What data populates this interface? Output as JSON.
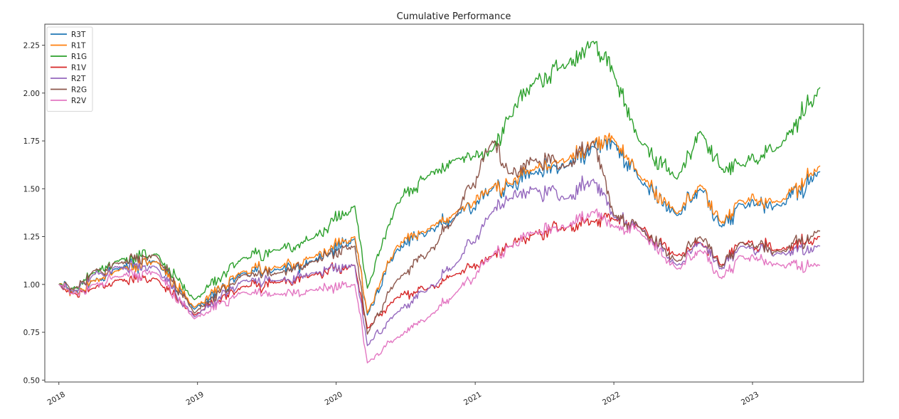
{
  "chart_data": {
    "type": "line",
    "title": "Cumulative Performance",
    "xlabel": "",
    "ylabel": "",
    "grid": false,
    "legend_position": "top-left",
    "xlim": [
      "2017-11-25",
      "2023-10-20"
    ],
    "ylim": [
      0.49,
      2.36
    ],
    "x_ticks": [
      {
        "date": "2018-01-01",
        "label": "2018"
      },
      {
        "date": "2019-01-01",
        "label": "2019"
      },
      {
        "date": "2020-01-01",
        "label": "2020"
      },
      {
        "date": "2021-01-01",
        "label": "2021"
      },
      {
        "date": "2022-01-01",
        "label": "2022"
      },
      {
        "date": "2023-01-01",
        "label": "2023"
      }
    ],
    "y_ticks": [
      {
        "value": 0.5,
        "label": "0.50"
      },
      {
        "value": 0.75,
        "label": "0.75"
      },
      {
        "value": 1.0,
        "label": "1.00"
      },
      {
        "value": 1.25,
        "label": "1.25"
      },
      {
        "value": 1.5,
        "label": "1.50"
      },
      {
        "value": 1.75,
        "label": "1.75"
      },
      {
        "value": 2.0,
        "label": "2.00"
      },
      {
        "value": 2.25,
        "label": "2.25"
      }
    ],
    "x": [
      "2018-01-01",
      "2018-02-08",
      "2018-04-01",
      "2018-06-01",
      "2018-09-15",
      "2018-12-24",
      "2019-05-01",
      "2019-08-01",
      "2019-11-01",
      "2020-02-19",
      "2020-03-23",
      "2020-06-08",
      "2020-09-01",
      "2020-11-09",
      "2021-02-15",
      "2021-04-01",
      "2021-06-01",
      "2021-09-01",
      "2021-11-08",
      "2022-01-01",
      "2022-03-08",
      "2022-06-16",
      "2022-08-16",
      "2022-10-12",
      "2022-12-01",
      "2023-03-15",
      "2023-06-28"
    ],
    "series": [
      {
        "name": "R3T",
        "color": "#1f77b4",
        "values": [
          1.0,
          0.96,
          1.02,
          1.08,
          1.12,
          0.87,
          1.06,
          1.08,
          1.12,
          1.24,
          0.84,
          1.18,
          1.28,
          1.35,
          1.5,
          1.52,
          1.58,
          1.62,
          1.72,
          1.74,
          1.55,
          1.36,
          1.5,
          1.3,
          1.42,
          1.41,
          1.59
        ]
      },
      {
        "name": "R1T",
        "color": "#ff7f0e",
        "values": [
          1.0,
          0.96,
          1.02,
          1.07,
          1.12,
          0.88,
          1.07,
          1.09,
          1.14,
          1.25,
          0.85,
          1.2,
          1.29,
          1.37,
          1.51,
          1.53,
          1.6,
          1.65,
          1.74,
          1.76,
          1.57,
          1.37,
          1.52,
          1.32,
          1.44,
          1.43,
          1.62
        ]
      },
      {
        "name": "R1G",
        "color": "#2ca02c",
        "values": [
          1.0,
          0.98,
          1.06,
          1.12,
          1.16,
          0.92,
          1.14,
          1.18,
          1.24,
          1.41,
          0.98,
          1.42,
          1.57,
          1.65,
          1.7,
          1.88,
          2.05,
          2.15,
          2.27,
          2.1,
          1.75,
          1.55,
          1.8,
          1.6,
          1.62,
          1.72,
          2.03
        ]
      },
      {
        "name": "R1V",
        "color": "#d62728",
        "values": [
          1.0,
          0.95,
          0.98,
          1.02,
          1.03,
          0.84,
          0.99,
          1.01,
          1.05,
          1.1,
          0.77,
          0.93,
          0.98,
          1.05,
          1.15,
          1.2,
          1.26,
          1.3,
          1.33,
          1.34,
          1.3,
          1.15,
          1.22,
          1.1,
          1.22,
          1.18,
          1.25
        ]
      },
      {
        "name": "R2T",
        "color": "#9467bd",
        "values": [
          1.0,
          0.96,
          1.05,
          1.09,
          1.09,
          0.83,
          1.02,
          1.02,
          1.06,
          1.1,
          0.68,
          0.85,
          0.98,
          1.1,
          1.38,
          1.45,
          1.5,
          1.45,
          1.55,
          1.35,
          1.3,
          1.1,
          1.22,
          1.08,
          1.2,
          1.16,
          1.2
        ]
      },
      {
        "name": "R2G",
        "color": "#8c564b",
        "values": [
          1.0,
          0.97,
          1.07,
          1.11,
          1.15,
          0.85,
          1.05,
          1.06,
          1.12,
          1.2,
          0.74,
          1.02,
          1.17,
          1.35,
          1.75,
          1.58,
          1.65,
          1.62,
          1.75,
          1.36,
          1.3,
          1.12,
          1.25,
          1.09,
          1.22,
          1.17,
          1.28
        ]
      },
      {
        "name": "R2V",
        "color": "#e377c2",
        "values": [
          1.0,
          0.95,
          1.0,
          1.04,
          1.06,
          0.82,
          0.96,
          0.95,
          0.97,
          1.0,
          0.59,
          0.72,
          0.83,
          0.95,
          1.15,
          1.2,
          1.27,
          1.3,
          1.38,
          1.3,
          1.28,
          1.08,
          1.18,
          1.03,
          1.15,
          1.1,
          1.1
        ]
      }
    ]
  }
}
